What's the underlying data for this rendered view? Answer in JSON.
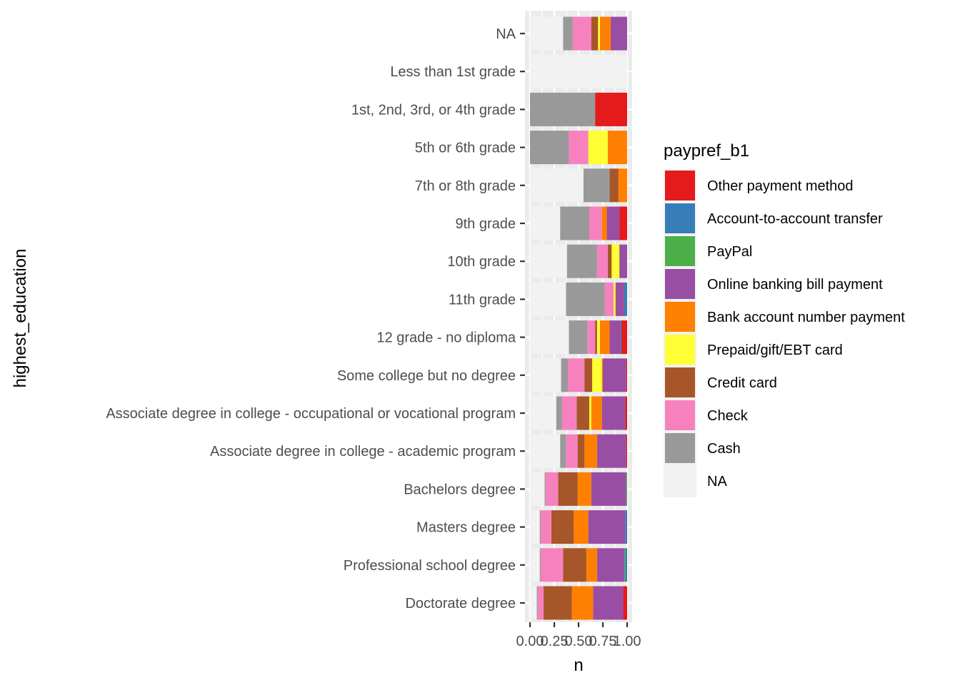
{
  "chart_data": {
    "type": "bar",
    "orientation": "horizontal",
    "stacked": true,
    "xlabel": "n",
    "ylabel": "highest_education",
    "xlim": [
      0,
      1
    ],
    "x_ticks": [
      "0.00",
      "0.25",
      "0.50",
      "0.75",
      "1.00"
    ],
    "x_tick_values": [
      0,
      0.25,
      0.5,
      0.75,
      1
    ],
    "grid": true,
    "legend_position": "right",
    "categories": [
      "NA",
      "Less than 1st grade",
      "1st, 2nd, 3rd, or 4th grade",
      "5th or 6th grade",
      "7th or 8th grade",
      "9th grade",
      "10th grade",
      "11th grade",
      "12 grade - no diploma",
      "Some college but no degree",
      "Associate degree in college - occupational or vocational program",
      "Associate degree in college - academic program",
      "Bachelors degree",
      "Masters degree",
      "Professional school degree",
      "Doctorate degree"
    ],
    "legend": {
      "title": "paypref_b1",
      "entries": [
        {
          "label": "Other payment method",
          "color": "#e41a1c"
        },
        {
          "label": "Account-to-account transfer",
          "color": "#377eb8"
        },
        {
          "label": "PayPal",
          "color": "#4daf4a"
        },
        {
          "label": "Online banking bill payment",
          "color": "#984ea3"
        },
        {
          "label": "Bank account number payment",
          "color": "#ff7f00"
        },
        {
          "label": "Prepaid/gift/EBT card",
          "color": "#ffff33"
        },
        {
          "label": "Credit card",
          "color": "#a65628"
        },
        {
          "label": "Check",
          "color": "#f781bf"
        },
        {
          "label": "Cash",
          "color": "#999999"
        },
        {
          "label": "NA",
          "color": "#f2f2f2"
        }
      ]
    },
    "series": [
      {
        "name": "Other payment method",
        "values": [
          0.0,
          0.0,
          0.33,
          0.0,
          0.0,
          0.08,
          0.0,
          0.0,
          0.06,
          0.01,
          0.02,
          0.01,
          0.0,
          0.0,
          0.0,
          0.04
        ]
      },
      {
        "name": "Account-to-account transfer",
        "values": [
          0.0,
          0.0,
          0.0,
          0.0,
          0.0,
          0.0,
          0.0,
          0.03,
          0.01,
          0.0,
          0.0,
          0.0,
          0.0,
          0.02,
          0.02,
          0.0
        ]
      },
      {
        "name": "PayPal",
        "values": [
          0.0,
          0.0,
          0.0,
          0.0,
          0.0,
          0.0,
          0.0,
          0.0,
          0.0,
          0.0,
          0.0,
          0.0,
          0.01,
          0.0,
          0.01,
          0.0
        ]
      },
      {
        "name": "Online banking bill payment",
        "values": [
          0.17,
          0.0,
          0.0,
          0.0,
          0.0,
          0.13,
          0.08,
          0.09,
          0.11,
          0.24,
          0.24,
          0.3,
          0.36,
          0.38,
          0.28,
          0.31
        ]
      },
      {
        "name": "Bank account number payment",
        "values": [
          0.11,
          0.0,
          0.0,
          0.2,
          0.09,
          0.05,
          0.0,
          0.0,
          0.1,
          0.01,
          0.11,
          0.13,
          0.14,
          0.15,
          0.11,
          0.22
        ]
      },
      {
        "name": "Prepaid/gift/EBT card",
        "values": [
          0.02,
          0.0,
          0.0,
          0.2,
          0.0,
          0.0,
          0.08,
          0.02,
          0.03,
          0.1,
          0.02,
          0.0,
          0.0,
          0.0,
          0.0,
          0.0
        ]
      },
      {
        "name": "Credit card",
        "values": [
          0.07,
          0.0,
          0.0,
          0.0,
          0.09,
          0.0,
          0.04,
          0.0,
          0.02,
          0.08,
          0.13,
          0.07,
          0.2,
          0.23,
          0.24,
          0.29
        ]
      },
      {
        "name": "Check",
        "values": [
          0.19,
          0.0,
          0.0,
          0.2,
          0.0,
          0.13,
          0.11,
          0.09,
          0.08,
          0.17,
          0.15,
          0.12,
          0.13,
          0.11,
          0.23,
          0.06
        ]
      },
      {
        "name": "Cash",
        "values": [
          0.1,
          0.0,
          0.67,
          0.4,
          0.27,
          0.3,
          0.31,
          0.4,
          0.19,
          0.07,
          0.06,
          0.06,
          0.01,
          0.01,
          0.01,
          0.01
        ]
      },
      {
        "name": "NA",
        "values": [
          0.34,
          1.0,
          0.0,
          0.0,
          0.55,
          0.31,
          0.38,
          0.37,
          0.4,
          0.32,
          0.27,
          0.31,
          0.15,
          0.1,
          0.1,
          0.07
        ]
      }
    ]
  }
}
